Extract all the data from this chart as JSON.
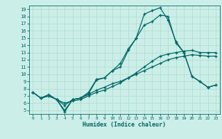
{
  "xlabel": "Humidex (Indice chaleur)",
  "bg_color": "#cceee8",
  "grid_color": "#aaddcc",
  "line_color": "#006666",
  "xlim": [
    -0.5,
    23.5
  ],
  "ylim": [
    4.5,
    19.5
  ],
  "xticks": [
    0,
    1,
    2,
    3,
    4,
    5,
    6,
    7,
    8,
    9,
    10,
    11,
    12,
    13,
    14,
    15,
    16,
    17,
    18,
    19,
    20,
    21,
    22,
    23
  ],
  "yticks": [
    5,
    6,
    7,
    8,
    9,
    10,
    11,
    12,
    13,
    14,
    15,
    16,
    17,
    18,
    19
  ],
  "line1_x": [
    0,
    1,
    2,
    3,
    4,
    5,
    6,
    7,
    8,
    9,
    10,
    11,
    12,
    13,
    14,
    15,
    16,
    17,
    18,
    19,
    20,
    21,
    22,
    23
  ],
  "line1_y": [
    7.5,
    6.7,
    7.2,
    6.5,
    5.0,
    6.5,
    6.7,
    7.5,
    9.3,
    9.5,
    10.5,
    11.5,
    13.5,
    15.0,
    18.3,
    18.8,
    19.2,
    17.5,
    14.5,
    13.0,
    9.7,
    9.0,
    8.2,
    8.5
  ],
  "line2_x": [
    0,
    1,
    2,
    3,
    4,
    5,
    6,
    7,
    8,
    9,
    10,
    11,
    12,
    13,
    14,
    15,
    16,
    17,
    18,
    19,
    20,
    21,
    22,
    23
  ],
  "line2_y": [
    7.5,
    6.7,
    7.0,
    6.5,
    6.0,
    6.3,
    6.5,
    7.0,
    7.5,
    7.8,
    8.3,
    8.8,
    9.5,
    10.2,
    11.0,
    11.8,
    12.5,
    12.8,
    13.0,
    13.2,
    13.3,
    13.0,
    13.0,
    13.0
  ],
  "line3_x": [
    0,
    1,
    2,
    3,
    4,
    5,
    6,
    7,
    8,
    9,
    10,
    11,
    12,
    13,
    14,
    15,
    16,
    17,
    18,
    19,
    20,
    21,
    22,
    23
  ],
  "line3_y": [
    7.5,
    6.7,
    7.0,
    6.5,
    5.7,
    6.5,
    6.7,
    7.2,
    7.8,
    8.2,
    8.7,
    9.0,
    9.5,
    10.0,
    10.5,
    11.0,
    11.5,
    12.0,
    12.3,
    12.5,
    12.7,
    12.6,
    12.5,
    12.5
  ],
  "line4_x": [
    3,
    4,
    5,
    6,
    7,
    8,
    9,
    10,
    11,
    12,
    13,
    14,
    15,
    16,
    17,
    18,
    19,
    20,
    21,
    22,
    23
  ],
  "line4_y": [
    6.5,
    4.8,
    6.5,
    6.7,
    7.3,
    9.2,
    9.5,
    10.5,
    11.0,
    13.3,
    15.0,
    16.8,
    17.3,
    18.2,
    18.0,
    14.3,
    13.0,
    9.7,
    9.0,
    8.2,
    8.5
  ]
}
